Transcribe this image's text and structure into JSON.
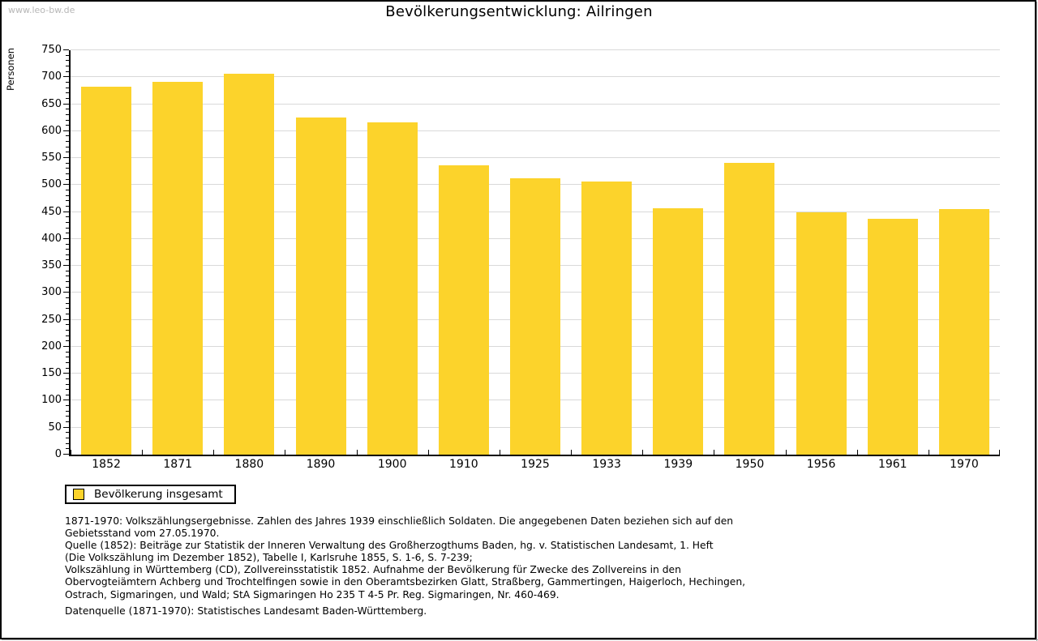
{
  "page": {
    "watermark": "www.leo-bw.de",
    "title": "Bevölkerungsentwicklung: Ailringen"
  },
  "chart_data": {
    "type": "bar",
    "title": "Bevölkerungsentwicklung: Ailringen",
    "xlabel": "",
    "ylabel": "Personen",
    "ylim": [
      0,
      750
    ],
    "ytick_step": 50,
    "yminor_step": 10,
    "grid": true,
    "legend_position": "bottom-left",
    "bar_color": "#fcd32b",
    "gridline_color": "#d9d9d9",
    "categories": [
      "1852",
      "1871",
      "1880",
      "1890",
      "1900",
      "1910",
      "1925",
      "1933",
      "1939",
      "1950",
      "1956",
      "1961",
      "1970"
    ],
    "series": [
      {
        "name": "Bevölkerung insgesamt",
        "values": [
          682,
          691,
          706,
          625,
          617,
          536,
          512,
          507,
          457,
          541,
          449,
          438,
          456
        ]
      }
    ]
  },
  "legend": {
    "label": "Bevölkerung insgesamt",
    "swatch_color": "#fcd32b"
  },
  "footnotes": {
    "lines": [
      "1871-1970: Volkszählungsergebnisse. Zahlen des Jahres 1939 einschließlich Soldaten. Die angegebenen Daten beziehen sich auf den",
      "Gebietsstand vom 27.05.1970.",
      "Quelle (1852): Beiträge zur Statistik der Inneren Verwaltung des Großherzogthums Baden, hg. v. Statistischen Landesamt, 1. Heft",
      "(Die Volkszählung im Dezember 1852), Tabelle I, Karlsruhe 1855, S. 1-6, S. 7-239;",
      "Volkszählung in Württemberg (CD), Zollvereinsstatistik 1852. Aufnahme der Bevölkerung für Zwecke des Zollvereins in den",
      "Obervogteiämtern Achberg und Trochtelfingen sowie in den Oberamtsbezirken Glatt, Straßberg, Gammertingen, Haigerloch, Hechingen,",
      "Ostrach, Sigmaringen, und Wald; StA Sigmaringen Ho 235 T 4-5 Pr. Reg. Sigmaringen, Nr. 460-469.",
      "",
      "Datenquelle (1871-1970): Statistisches Landesamt Baden-Württemberg."
    ]
  }
}
